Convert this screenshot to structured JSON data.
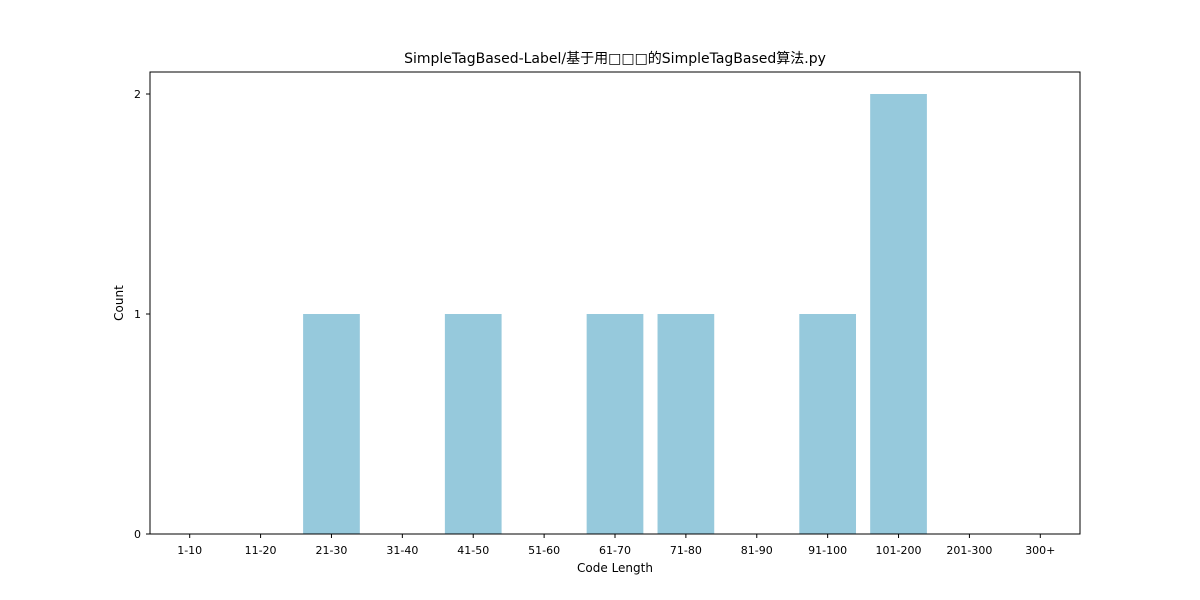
{
  "chart_data": {
    "type": "bar",
    "title": "SimpleTagBased-Label/基于用□□□的SimpleTagBased算法.py",
    "xlabel": "Code Length",
    "ylabel": "Count",
    "categories": [
      "1-10",
      "11-20",
      "21-30",
      "31-40",
      "41-50",
      "51-60",
      "61-70",
      "71-80",
      "81-90",
      "91-100",
      "101-200",
      "201-300",
      "300+"
    ],
    "values": [
      0,
      0,
      1,
      0,
      1,
      0,
      1,
      1,
      0,
      1,
      2,
      0,
      0
    ],
    "ylim": [
      0,
      2.1
    ],
    "yticks": [
      "0",
      "1",
      "2"
    ],
    "grid": false,
    "legend": "none",
    "colors": {
      "bar": "#96c9dc",
      "axis": "#000000",
      "background": "#ffffff"
    }
  }
}
